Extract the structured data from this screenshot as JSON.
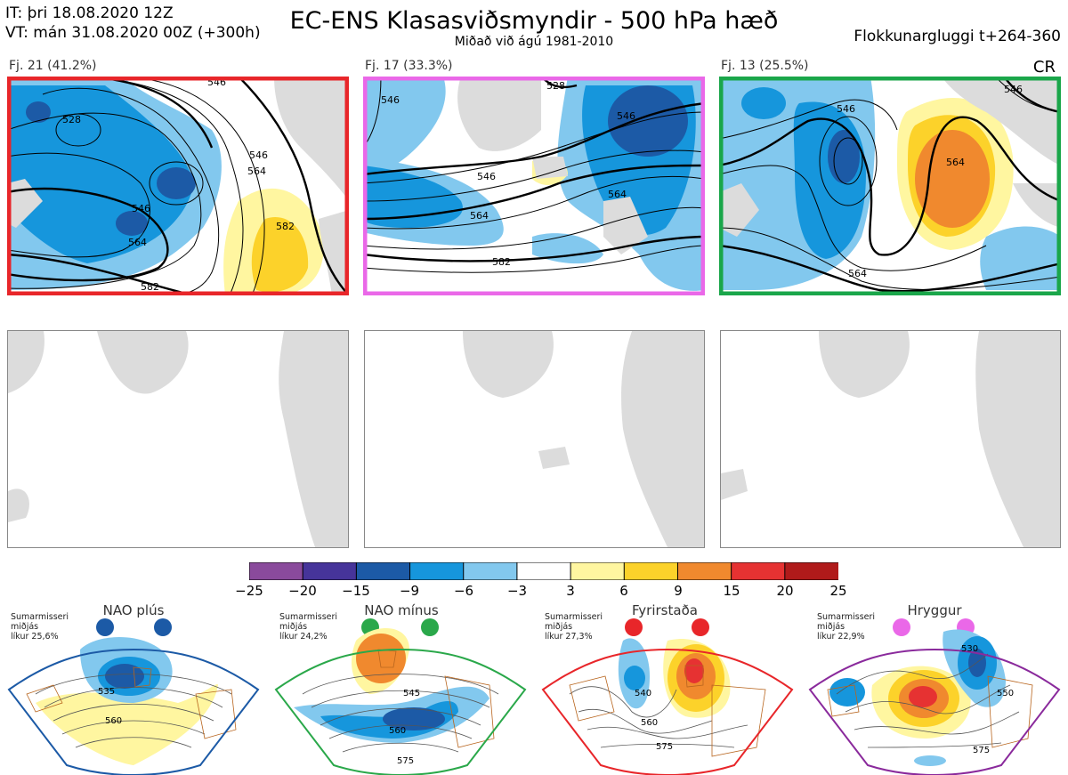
{
  "header": {
    "init_time": "IT: þri 18.08.2020 12Z",
    "valid_time": "VT: mán 31.08.2020 00Z  (+300h)",
    "title": "EC-ENS Klasasviðsmyndir - 500 hPa hæð",
    "subtitle": "Miðað við ágú 1981-2010",
    "window": "Flokkunargluggi t+264-360",
    "corner_code": "CR"
  },
  "clusters": [
    {
      "label": "Fj. 21 (41.2%)",
      "frame_color": "#e8262a",
      "contour_labels": [
        "528",
        "546",
        "564",
        "582",
        "546",
        "564",
        "582",
        "546"
      ]
    },
    {
      "label": "Fj. 17 (33.3%)",
      "frame_color": "#ea68e8",
      "contour_labels": [
        "546",
        "528",
        "546",
        "564",
        "546",
        "564",
        "582"
      ]
    },
    {
      "label": "Fj. 13 (25.5%)",
      "frame_color": "#1aa64a",
      "contour_labels": [
        "546",
        "564",
        "564",
        "546"
      ]
    }
  ],
  "colorbar": {
    "ticks": [
      "−25",
      "−20",
      "−15",
      "−9",
      "−6",
      "−3",
      "3",
      "6",
      "9",
      "15",
      "20",
      "25"
    ],
    "colors": [
      "#8a4a9c",
      "#46349a",
      "#1c5aa6",
      "#1696dc",
      "#82c8ee",
      "#ffffff",
      "#fff6a0",
      "#fcd22a",
      "#f0892e",
      "#e63232",
      "#b01a1a"
    ]
  },
  "regimes": [
    {
      "name": "NAO plús",
      "season": "Sumarmisseri",
      "median": "miðjás",
      "prob": "líkur 25,6%",
      "frame_color": "#1c5aa6",
      "dot_color": "#1c5aa6",
      "contour_labels": [
        "535",
        "560"
      ]
    },
    {
      "name": "NAO mínus",
      "season": "Sumarmisseri",
      "median": "miðjás",
      "prob": "líkur 24,2%",
      "frame_color": "#2aa84a",
      "dot_color": "#2aa84a",
      "contour_labels": [
        "545",
        "560",
        "575"
      ]
    },
    {
      "name": "Fyrirstaða",
      "season": "Sumarmisseri",
      "median": "miðjás",
      "prob": "líkur 27,3%",
      "frame_color": "#e8262a",
      "dot_color": "#e8262a",
      "contour_labels": [
        "540",
        "560",
        "575"
      ]
    },
    {
      "name": "Hryggur",
      "season": "Sumarmisseri",
      "median": "miðjás",
      "prob": "líkur 22,9%",
      "frame_color": "#8a2a9c",
      "dot_color": "#ea68e8",
      "contour_labels": [
        "530",
        "550",
        "575"
      ]
    }
  ]
}
